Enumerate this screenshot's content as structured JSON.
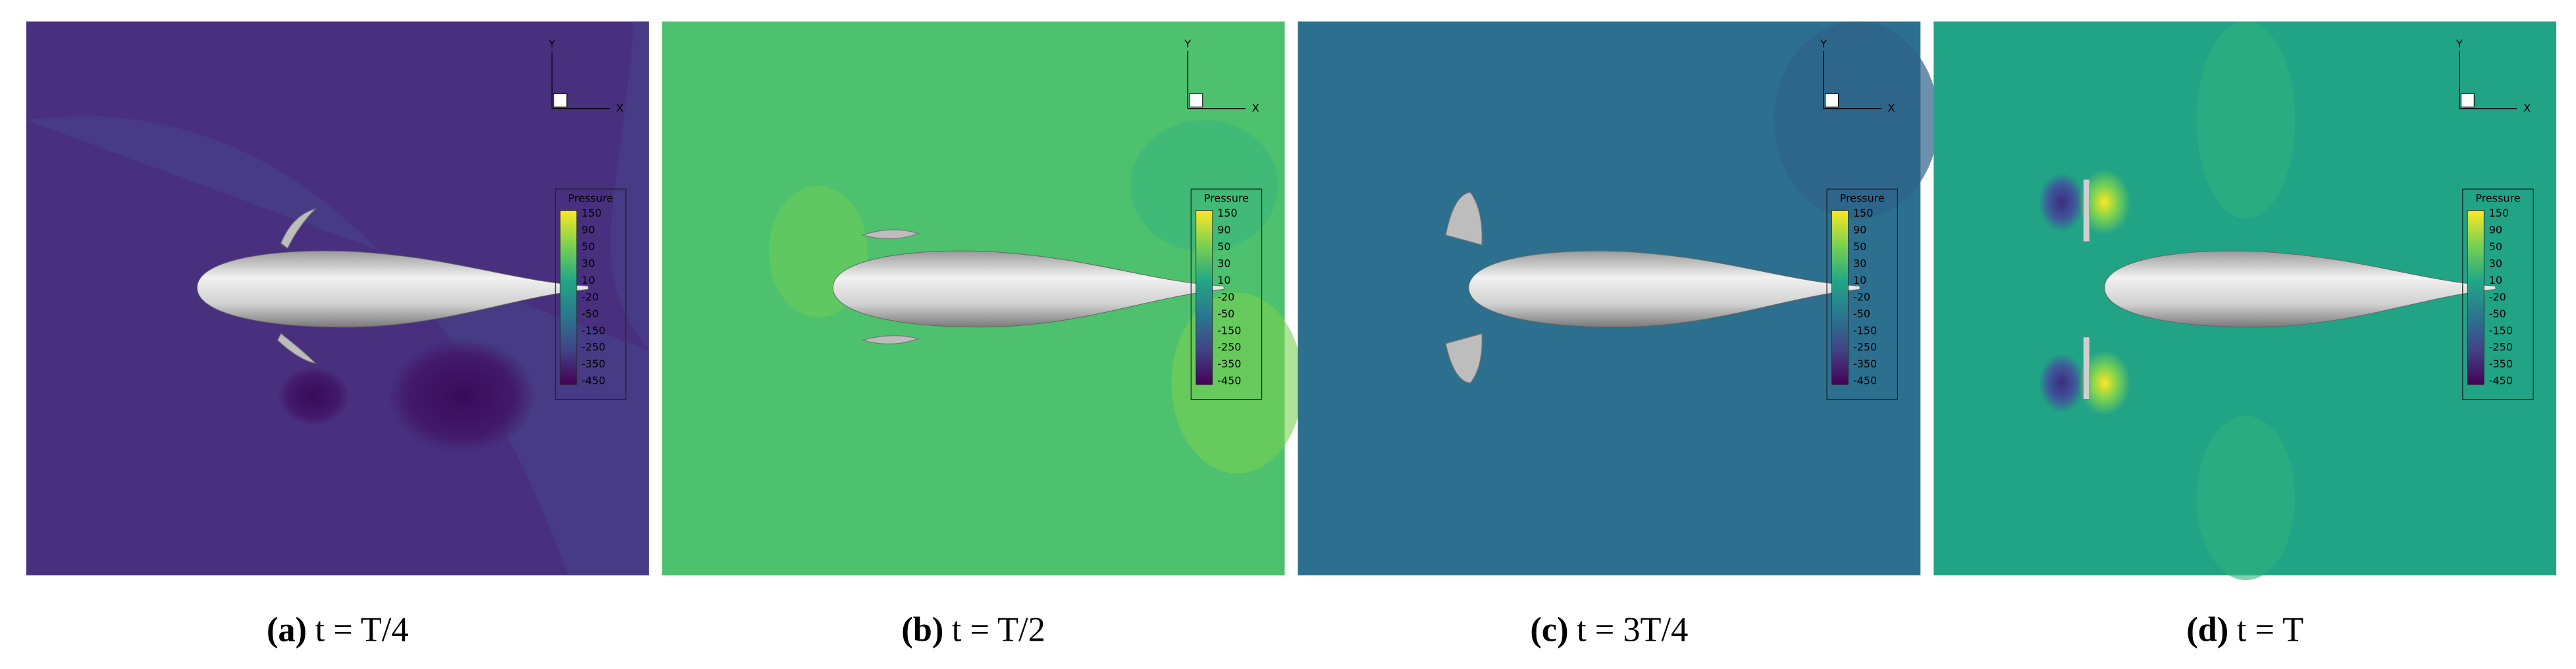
{
  "panels": [
    {
      "label": "(a)",
      "caption": "t = T/4"
    },
    {
      "label": "(b)",
      "caption": "t = T/2"
    },
    {
      "label": "(c)",
      "caption": "t = 3T/4"
    },
    {
      "label": "(d)",
      "caption": "t = T"
    }
  ],
  "legend": {
    "title": "Pressure",
    "levels": [
      "150",
      "90",
      "50",
      "30",
      "10",
      "-20",
      "-50",
      "-150",
      "-250",
      "-350",
      "-450"
    ]
  },
  "axis_labels": {
    "x": "X",
    "y": "Y"
  }
}
